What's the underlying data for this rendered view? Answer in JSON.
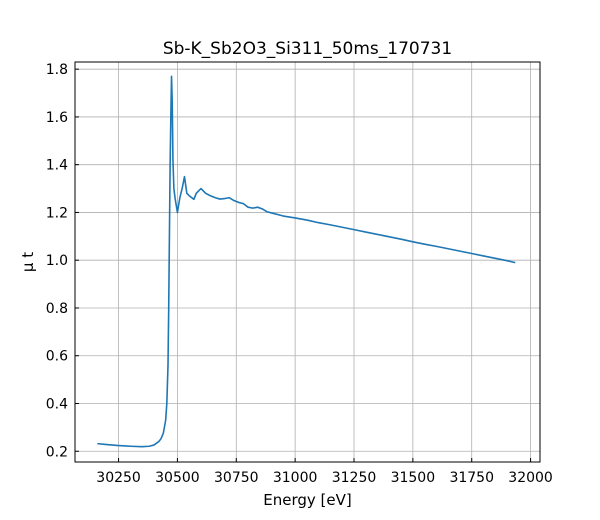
{
  "chart_data": {
    "type": "line",
    "title": "Sb-K_Sb2O3_Si311_50ms_170731",
    "xlabel": "Energy [eV]",
    "ylabel": "μ t",
    "xlim": [
      30065,
      32040
    ],
    "ylim": [
      0.155,
      1.83
    ],
    "xticks": [
      30250,
      30500,
      30750,
      31000,
      31250,
      31500,
      31750,
      32000
    ],
    "yticks": [
      0.2,
      0.4,
      0.6,
      0.8,
      1.0,
      1.2,
      1.4,
      1.6,
      1.8
    ],
    "ytick_labels": [
      "0.2",
      "0.4",
      "0.6",
      "0.8",
      "1.0",
      "1.2",
      "1.4",
      "1.6",
      "1.8"
    ],
    "grid": true,
    "color": "#1f77b4",
    "series": [
      {
        "x": [
          30160,
          30200,
          30250,
          30300,
          30350,
          30380,
          30400,
          30420,
          30430,
          30440,
          30450,
          30455,
          30460,
          30463,
          30466,
          30469,
          30472,
          30475,
          30478,
          30481,
          30485,
          30490,
          30500,
          30510,
          30520,
          30530,
          30540,
          30550,
          30570,
          30580,
          30600,
          30620,
          30640,
          30660,
          30680,
          30700,
          30720,
          30740,
          30760,
          30780,
          30800,
          30820,
          30840,
          30860,
          30880,
          30900,
          30950,
          31000,
          31050,
          31100,
          31150,
          31200,
          31250,
          31300,
          31350,
          31400,
          31450,
          31500,
          31550,
          31600,
          31650,
          31700,
          31750,
          31800,
          31850,
          31900,
          31935
        ],
        "y": [
          0.232,
          0.228,
          0.224,
          0.221,
          0.219,
          0.221,
          0.226,
          0.24,
          0.252,
          0.275,
          0.33,
          0.4,
          0.56,
          0.8,
          1.1,
          1.4,
          1.6,
          1.77,
          1.66,
          1.42,
          1.3,
          1.26,
          1.2,
          1.26,
          1.3,
          1.35,
          1.28,
          1.27,
          1.255,
          1.28,
          1.3,
          1.28,
          1.27,
          1.262,
          1.256,
          1.258,
          1.262,
          1.25,
          1.242,
          1.237,
          1.222,
          1.218,
          1.222,
          1.215,
          1.203,
          1.198,
          1.185,
          1.177,
          1.168,
          1.157,
          1.148,
          1.138,
          1.128,
          1.118,
          1.108,
          1.098,
          1.088,
          1.077,
          1.067,
          1.058,
          1.048,
          1.038,
          1.028,
          1.018,
          1.008,
          0.998,
          0.99
        ]
      }
    ]
  }
}
